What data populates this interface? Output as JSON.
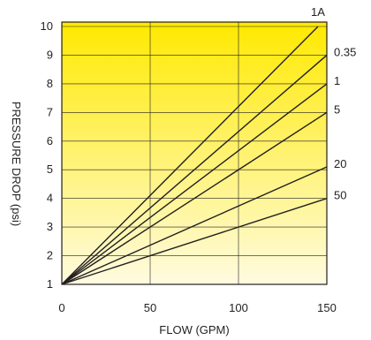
{
  "chart_data": {
    "type": "line",
    "title": "",
    "xlabel": "FLOW (GPM)",
    "ylabel": "PRESSURE DROP (psi)",
    "xlim": [
      0,
      150
    ],
    "ylim": [
      1,
      10
    ],
    "xticks": [
      "0",
      "50",
      "100",
      "150"
    ],
    "yticks": [
      "1",
      "2",
      "3",
      "4",
      "5",
      "6",
      "7",
      "8",
      "9",
      "10"
    ],
    "grid": true,
    "background_gradient": {
      "top": "#ffe900",
      "bottom": "#fffbe0"
    },
    "line_color": "#231f20",
    "series": [
      {
        "name": "1A",
        "x": [
          0,
          145
        ],
        "y": [
          1,
          10
        ]
      },
      {
        "name": "0.35",
        "x": [
          0,
          150
        ],
        "y": [
          1,
          9
        ]
      },
      {
        "name": "1",
        "x": [
          0,
          150
        ],
        "y": [
          1,
          8
        ]
      },
      {
        "name": "5",
        "x": [
          0,
          150
        ],
        "y": [
          1,
          7
        ]
      },
      {
        "name": "20",
        "x": [
          0,
          150
        ],
        "y": [
          1,
          5.1
        ]
      },
      {
        "name": "50",
        "x": [
          0,
          150
        ],
        "y": [
          1,
          4
        ]
      }
    ]
  }
}
